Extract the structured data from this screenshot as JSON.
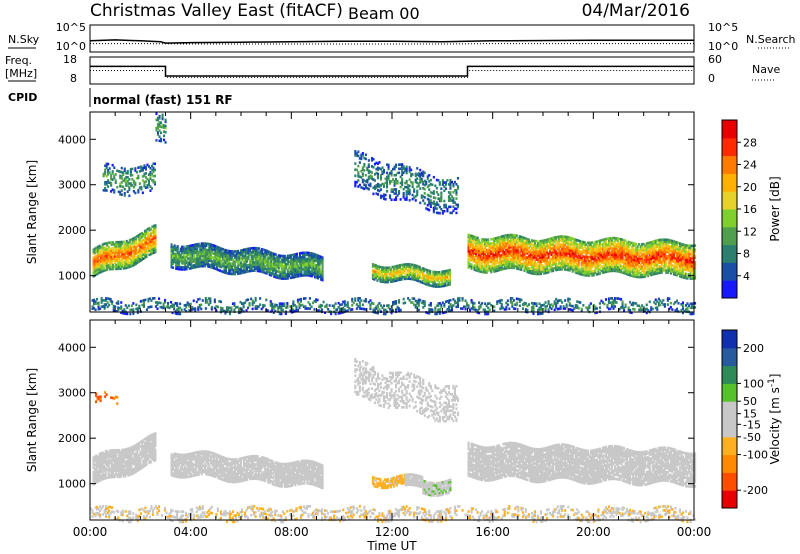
{
  "header": {
    "title": "Christmas Valley East (fitACF)",
    "beam": "Beam 00",
    "date": "04/Mar/2016"
  },
  "labels": {
    "nsky": "N.Sky",
    "nsearch": "N.Search",
    "freq": "Freq.",
    "freq_unit": "[MHz]",
    "nave": "Nave",
    "cpid": "CPID",
    "cpid_value": "normal (fast) 151 RF",
    "noise_tick_top": "10^5",
    "noise_tick_bottom": "10^0"
  },
  "chart_data": [
    {
      "type": "line",
      "name": "noise-panel",
      "xlabel": "",
      "ylabel": "",
      "left_axis": "N.Sky",
      "right_axis": "N.Search",
      "ylim": [
        0,
        5
      ],
      "yticks": [
        "10^5",
        "10^0"
      ],
      "series": [
        {
          "name": "N.Sky",
          "x": [
            0,
            1,
            2,
            2.8,
            3,
            4,
            6,
            8,
            10,
            12,
            14,
            15,
            16,
            20,
            24
          ],
          "y": [
            2.0,
            2.2,
            2.0,
            1.8,
            1.5,
            1.6,
            1.7,
            1.8,
            1.9,
            1.9,
            1.8,
            1.9,
            2.0,
            2.1,
            2.1
          ]
        },
        {
          "name": "N.Search",
          "x": [
            0,
            2,
            4,
            6,
            8,
            10,
            12,
            14,
            16,
            18,
            20,
            22,
            24
          ],
          "y": [
            1.4,
            1.4,
            1.3,
            1.3,
            1.3,
            1.3,
            1.3,
            1.3,
            1.4,
            1.4,
            1.4,
            1.4,
            1.4
          ]
        }
      ]
    },
    {
      "type": "line",
      "name": "frequency-panel",
      "ylim": [
        8,
        18
      ],
      "yticks": [
        8,
        18
      ],
      "right_ylim": [
        0,
        60
      ],
      "right_yticks": [
        0,
        60
      ],
      "series": [
        {
          "name": "Freq.",
          "x": [
            0,
            3,
            3,
            15,
            15,
            24
          ],
          "y": [
            14.8,
            14.8,
            10.6,
            10.6,
            14.8,
            14.8
          ]
        },
        {
          "name": "Nave",
          "x": [
            0,
            3,
            3,
            15,
            15,
            24
          ],
          "y": [
            13.0,
            13.0,
            10.0,
            10.0,
            13.0,
            13.0
          ]
        }
      ]
    },
    {
      "type": "heatmap",
      "name": "power-panel",
      "xlabel": "Time UT",
      "ylabel": "Slant Range [km]",
      "xlim": [
        0,
        24
      ],
      "ylim": [
        200,
        4600
      ],
      "yticks": [
        1000,
        2000,
        3000,
        4000
      ],
      "xticks": [
        "00:00",
        "04:00",
        "08:00",
        "12:00",
        "16:00",
        "20:00",
        "00:00"
      ],
      "colorbar": {
        "label": "Power [dB]",
        "range": [
          0,
          32
        ],
        "ticks": [
          4,
          8,
          12,
          16,
          20,
          24,
          28
        ],
        "colors": [
          "#1818ff",
          "#1a4fa8",
          "#2a7f6e",
          "#4f9f4f",
          "#7fcf2f",
          "#e6d22a",
          "#ffb000",
          "#ff7b00",
          "#ff2a00",
          "#e60000"
        ]
      },
      "bands": [
        {
          "t0": 0.1,
          "t1": 2.6,
          "r0": 1200,
          "r1": 1800,
          "peak": 26,
          "trend": 500
        },
        {
          "t0": 3.2,
          "t1": 9.2,
          "r0": 1050,
          "r1": 1550,
          "peak": 13,
          "trend": -300
        },
        {
          "t0": 11.2,
          "t1": 14.3,
          "r0": 850,
          "r1": 1200,
          "peak": 20,
          "trend": -150
        },
        {
          "t0": 15.0,
          "t1": 24.0,
          "r0": 1050,
          "r1": 1800,
          "peak": 28,
          "trend": -150
        },
        {
          "t0": 0.5,
          "t1": 2.6,
          "r0": 2800,
          "r1": 3400,
          "peak": 12,
          "trend": 0
        },
        {
          "t0": 10.5,
          "t1": 14.6,
          "r0": 2600,
          "r1": 3400,
          "peak": 10,
          "trend": -600
        },
        {
          "t0": 2.6,
          "t1": 3.0,
          "r0": 3900,
          "r1": 4500,
          "peak": 12,
          "trend": 0
        },
        {
          "t0": 0.0,
          "t1": 24.0,
          "r0": 200,
          "r1": 450,
          "peak": 10,
          "trend": 0
        }
      ]
    },
    {
      "type": "heatmap",
      "name": "velocity-panel",
      "xlabel": "Time UT",
      "ylabel": "Slant Range [km]",
      "xlim": [
        0,
        24
      ],
      "ylim": [
        200,
        4600
      ],
      "yticks": [
        1000,
        2000,
        3000,
        4000
      ],
      "xticks": [
        "00:00",
        "04:00",
        "08:00",
        "12:00",
        "16:00",
        "20:00",
        "00:00"
      ],
      "colorbar": {
        "label": "Velocity [m s^-1]",
        "range": [
          -250,
          250
        ],
        "ticks": [
          200,
          100,
          50,
          15,
          -15,
          -50,
          -100,
          -200
        ],
        "colors": [
          "#e60000",
          "#ff4d00",
          "#ff8a00",
          "#ffb020",
          "#c8c8c8",
          "#c8c8c8",
          "#56c22b",
          "#2e8b57",
          "#285a9e",
          "#1030b0"
        ]
      },
      "bands": [
        {
          "t0": 0.1,
          "t1": 2.6,
          "r0": 1200,
          "r1": 1800,
          "peak": 0,
          "trend": 500
        },
        {
          "t0": 3.2,
          "t1": 9.2,
          "r0": 1050,
          "r1": 1550,
          "peak": 0,
          "trend": -300
        },
        {
          "t0": 11.2,
          "t1": 12.5,
          "r0": 950,
          "r1": 1150,
          "peak": -70,
          "trend": 0
        },
        {
          "t0": 12.5,
          "t1": 13.2,
          "r0": 900,
          "r1": 1150,
          "peak": 0,
          "trend": 0
        },
        {
          "t0": 13.2,
          "t1": 14.3,
          "r0": 780,
          "r1": 1080,
          "peak": 30,
          "trend": 0
        },
        {
          "t0": 15.0,
          "t1": 24.0,
          "r0": 1050,
          "r1": 1800,
          "peak": 0,
          "trend": -150
        },
        {
          "t0": 0.2,
          "t1": 1.1,
          "r0": 2750,
          "r1": 2950,
          "peak": -160,
          "trend": 0
        },
        {
          "t0": 10.5,
          "t1": 14.6,
          "r0": 2600,
          "r1": 3400,
          "peak": 20,
          "trend": -600
        },
        {
          "t0": 0.0,
          "t1": 24.0,
          "r0": 200,
          "r1": 450,
          "peak": -40,
          "trend": 0
        }
      ]
    }
  ]
}
